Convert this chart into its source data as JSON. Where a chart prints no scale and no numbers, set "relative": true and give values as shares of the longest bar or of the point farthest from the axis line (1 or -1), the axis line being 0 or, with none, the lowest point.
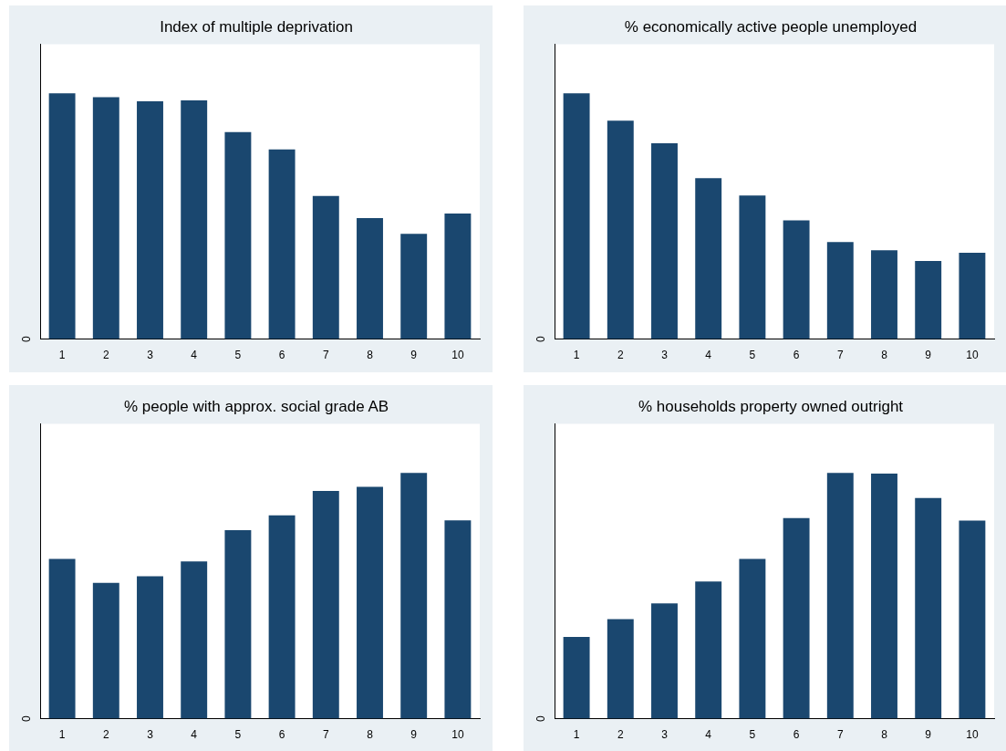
{
  "chart_data": [
    {
      "type": "bar",
      "title": "Index of multiple deprivation",
      "categories": [
        "1",
        "2",
        "3",
        "4",
        "5",
        "6",
        "7",
        "8",
        "9",
        "10"
      ],
      "values": [
        1,
        0.984,
        0.968,
        0.971,
        0.842,
        0.772,
        0.582,
        0.492,
        0.428,
        0.511
      ],
      "color": "#1a476f",
      "relative": true,
      "annotations": [
        "0"
      ]
    },
    {
      "type": "bar",
      "title": "% economically active people unemployed",
      "categories": [
        "1",
        "2",
        "3",
        "4",
        "5",
        "6",
        "7",
        "8",
        "9",
        "10"
      ],
      "values": [
        1,
        0.889,
        0.797,
        0.655,
        0.584,
        0.483,
        0.395,
        0.361,
        0.318,
        0.351
      ],
      "color": "#1a476f",
      "relative": true,
      "annotations": [
        "0"
      ]
    },
    {
      "type": "bar",
      "title": "% people with approx. social grade AB",
      "categories": [
        "1",
        "2",
        "3",
        "4",
        "5",
        "6",
        "7",
        "8",
        "9",
        "10"
      ],
      "values": [
        0.65,
        0.553,
        0.58,
        0.64,
        0.767,
        0.827,
        0.927,
        0.943,
        1,
        0.807
      ],
      "color": "#1a476f",
      "relative": true,
      "annotations": [
        "0"
      ]
    },
    {
      "type": "bar",
      "title": "% households property owned outright",
      "categories": [
        "1",
        "2",
        "3",
        "4",
        "5",
        "6",
        "7",
        "8",
        "9",
        "10"
      ],
      "values": [
        0.333,
        0.405,
        0.469,
        0.558,
        0.65,
        0.816,
        1,
        0.997,
        0.898,
        0.806
      ],
      "color": "#1a476f",
      "relative": true,
      "annotations": [
        "0"
      ]
    }
  ]
}
